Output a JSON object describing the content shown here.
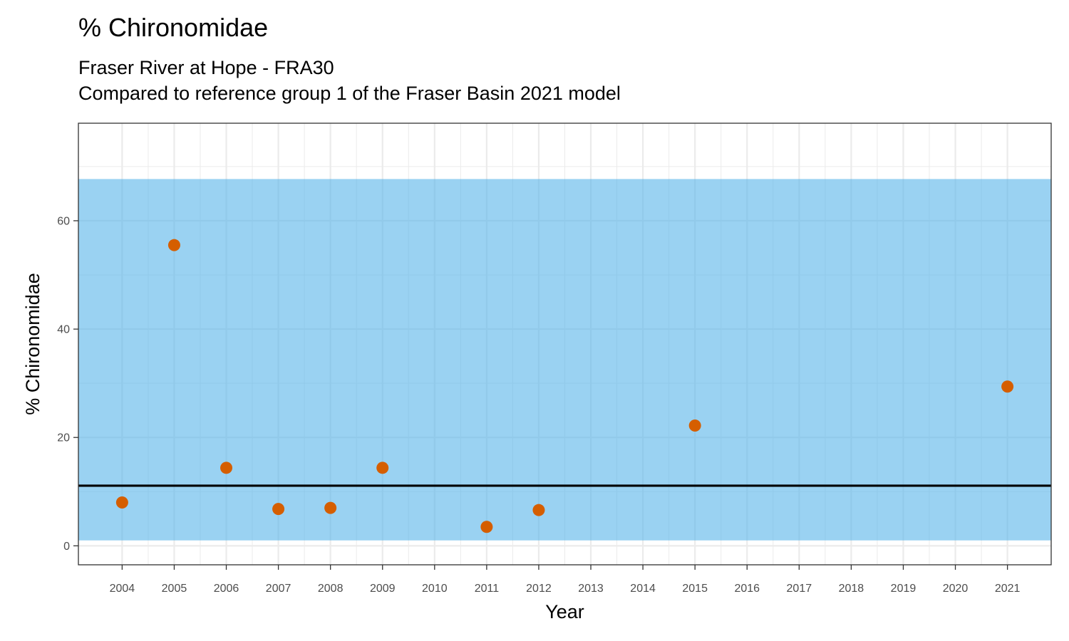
{
  "chart_data": {
    "type": "scatter",
    "title": "% Chironomidae",
    "subtitle": [
      "Fraser River at Hope - FRA30",
      "Compared to reference group 1 of the Fraser Basin 2021 model"
    ],
    "xlabel": "Year",
    "ylabel": "% Chironomidae",
    "x_ticks": [
      "2004",
      "2005",
      "2006",
      "2007",
      "2008",
      "2009",
      "2010",
      "2011",
      "2012",
      "2013",
      "2014",
      "2015",
      "2016",
      "2017",
      "2018",
      "2019",
      "2020",
      "2021"
    ],
    "y_ticks": [
      0,
      20,
      40,
      60
    ],
    "ylim": [
      -3.5,
      78
    ],
    "xlim": [
      2003.16,
      2021.84
    ],
    "grid": true,
    "reference_band": {
      "low": 1.0,
      "high": 67.7,
      "color": "#56B4E9",
      "opacity": 0.6
    },
    "reference_line": {
      "value": 11.1,
      "color": "#000000"
    },
    "points": [
      {
        "x": 2004,
        "y": 8.0
      },
      {
        "x": 2005,
        "y": 55.5
      },
      {
        "x": 2006,
        "y": 14.4
      },
      {
        "x": 2007,
        "y": 6.8
      },
      {
        "x": 2008,
        "y": 7.0
      },
      {
        "x": 2009,
        "y": 14.4
      },
      {
        "x": 2011,
        "y": 3.5
      },
      {
        "x": 2012,
        "y": 6.6
      },
      {
        "x": 2015,
        "y": 22.2
      },
      {
        "x": 2021,
        "y": 29.4
      }
    ],
    "point_color": "#D55E00"
  }
}
